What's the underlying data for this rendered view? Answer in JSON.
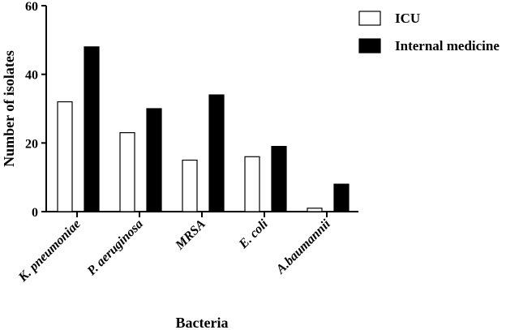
{
  "chart_data": {
    "type": "bar",
    "xlabel": "Bacteria",
    "ylabel": "Number of isolates",
    "ylim": [
      0,
      60
    ],
    "yticks": [
      0,
      20,
      40,
      60
    ],
    "grid": false,
    "legend_position": "top-right",
    "categories": [
      "K. pneumoniae",
      "P. aeruginosa",
      "MRSA",
      "E. coli",
      "A.baumannii"
    ],
    "series": [
      {
        "name": "ICU",
        "values": [
          32,
          23,
          15,
          16,
          1
        ],
        "fill": "#ffffff",
        "stroke": "#000000"
      },
      {
        "name": "Internal medicine",
        "values": [
          48,
          30,
          34,
          19,
          8
        ],
        "fill": "#000000",
        "stroke": "#000000"
      }
    ]
  }
}
